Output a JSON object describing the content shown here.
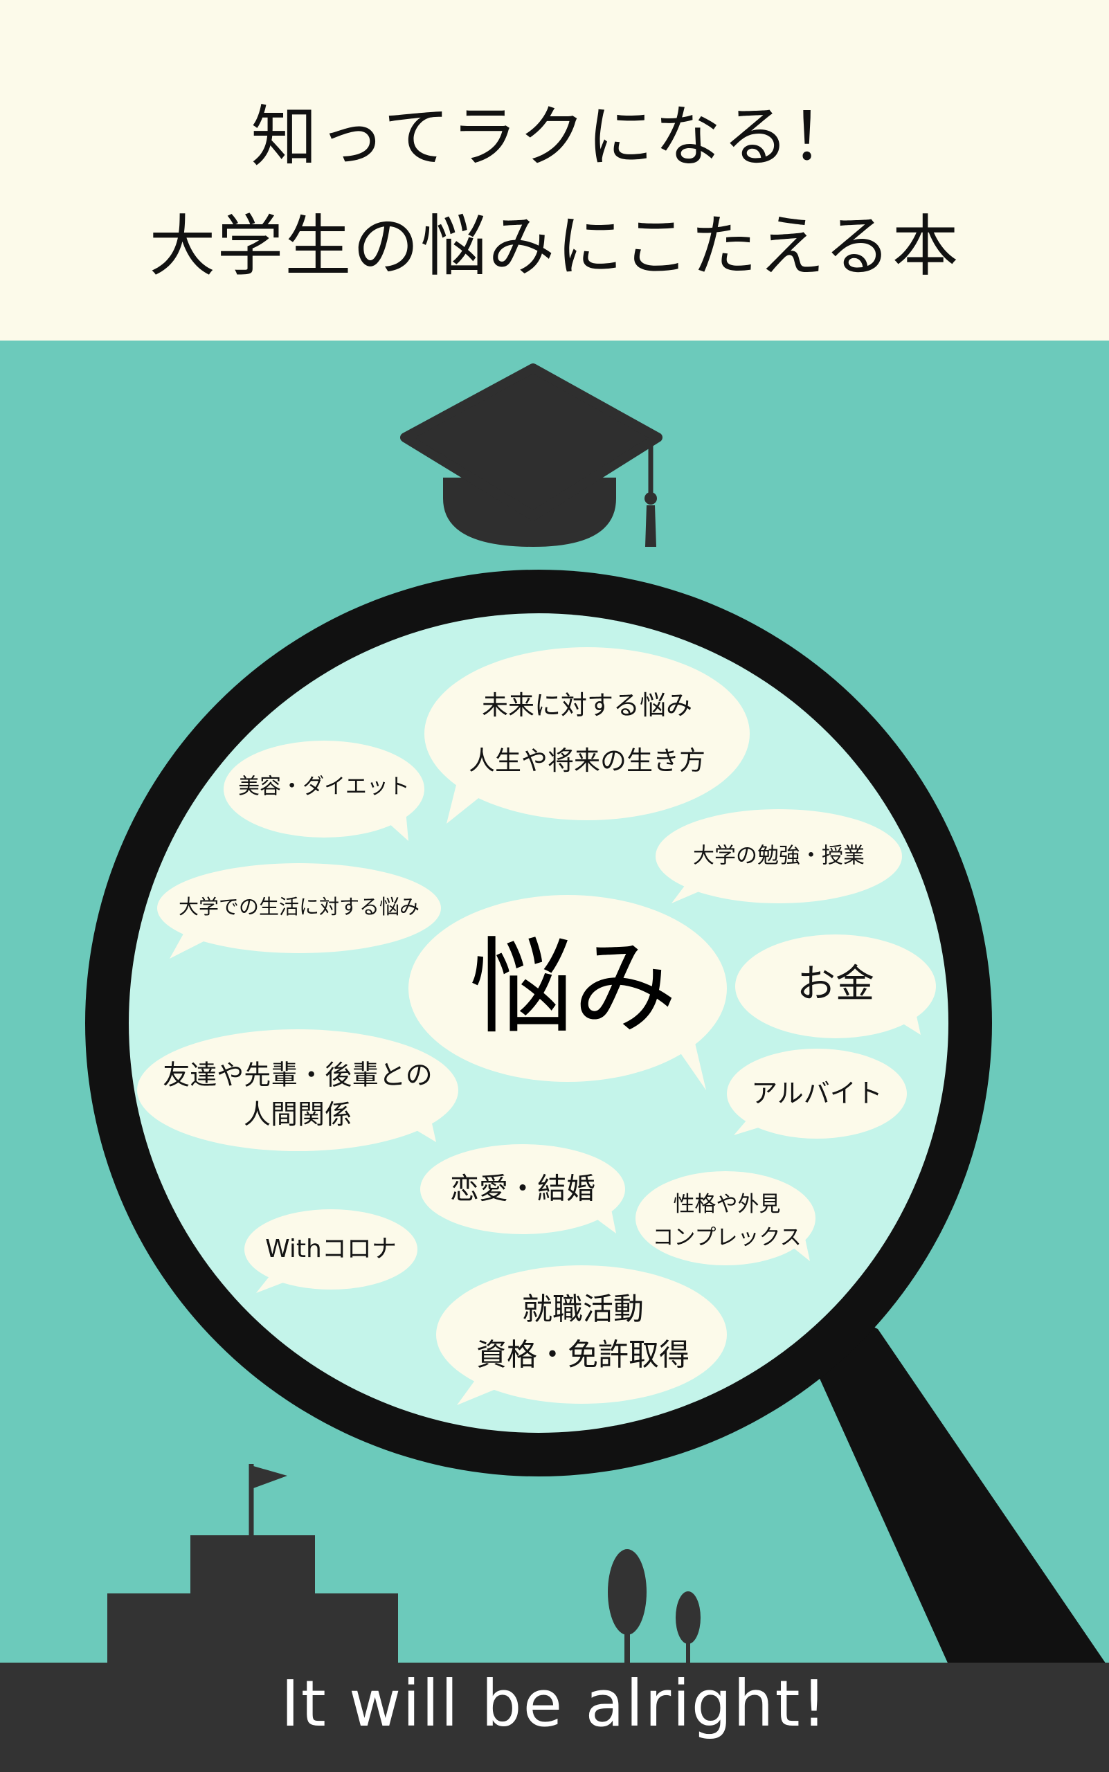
{
  "cover": {
    "title_line1": "知ってラクになる！",
    "title_line2": "大学生の悩みにこたえる本",
    "center_word": "悩み",
    "tagline": "It will be alright!"
  },
  "bubbles": {
    "future_line1": "未来に対する悩み",
    "future_line2": "人生や将来の生き方",
    "beauty": "美容・ダイエット",
    "study": "大学の勉強・授業",
    "campus_life": "大学での生活に対する悩み",
    "money": "お金",
    "friends_line1": "友達や先輩・後輩との",
    "friends_line2": "人間関係",
    "part_time": "アルバイト",
    "love": "恋愛・結婚",
    "personality_line1": "性格や外見",
    "personality_line2": "コンプレックス",
    "corona": "Withコロナ",
    "career_line1": "就職活動",
    "career_line2": "資格・免許取得"
  },
  "colors": {
    "header_bg": "#fcfaea",
    "teal_bg": "#6ccabb",
    "lens": "#c4f4ea",
    "bubble": "#fcfaea",
    "dark": "#333333"
  }
}
